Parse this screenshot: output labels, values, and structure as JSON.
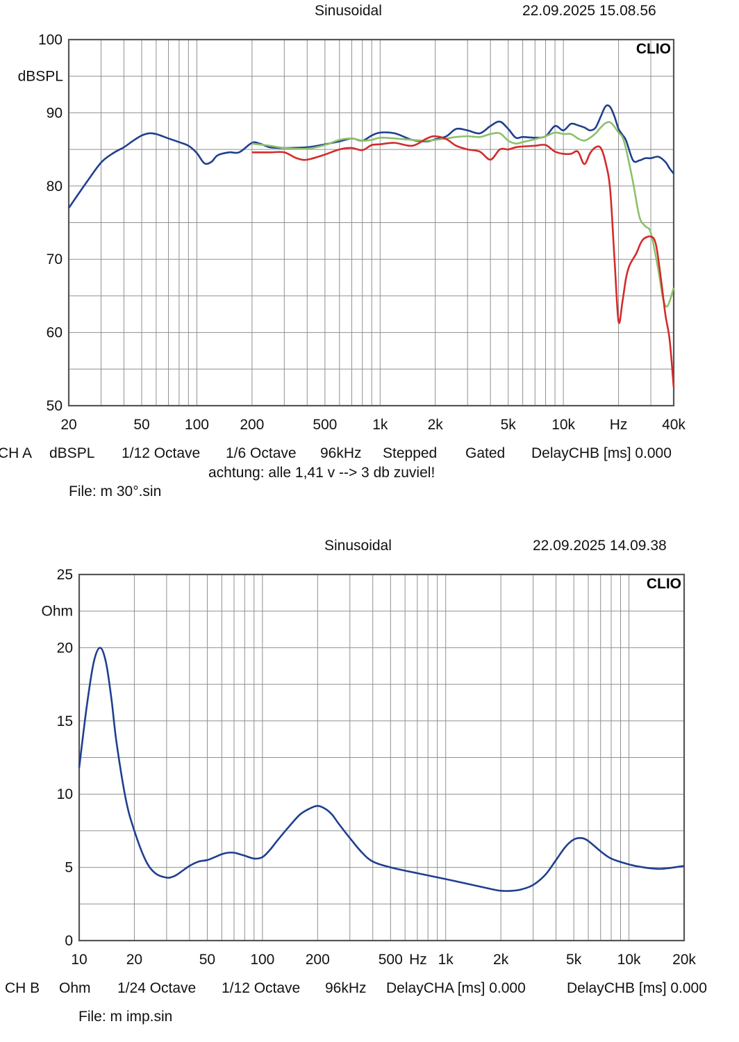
{
  "chart_data": [
    {
      "type": "line",
      "header": {
        "mode": "Sinusoidal",
        "timestamp": "22.09.2025 15.08.56"
      },
      "logo": "CLIO",
      "ylabel": "dBSPL",
      "xscale": "log",
      "xlim": [
        20,
        40000
      ],
      "ylim": [
        50,
        100
      ],
      "grid": true,
      "x_ticks": [
        {
          "v": 20,
          "label": "20"
        },
        {
          "v": 50,
          "label": "50"
        },
        {
          "v": 100,
          "label": "100"
        },
        {
          "v": 200,
          "label": "200"
        },
        {
          "v": 500,
          "label": "500"
        },
        {
          "v": 1000,
          "label": "1k"
        },
        {
          "v": 2000,
          "label": "2k"
        },
        {
          "v": 5000,
          "label": "5k"
        },
        {
          "v": 10000,
          "label": "10k"
        },
        {
          "v": 20000,
          "label": "Hz"
        },
        {
          "v": 40000,
          "label": "40k"
        }
      ],
      "y_ticks": [
        {
          "v": 100,
          "label": "100"
        },
        {
          "v": 90,
          "label": "90"
        },
        {
          "v": 80,
          "label": "80"
        },
        {
          "v": 70,
          "label": "70"
        },
        {
          "v": 60,
          "label": "60"
        },
        {
          "v": 50,
          "label": "50"
        }
      ],
      "series": [
        {
          "color": "#1f3f8f",
          "x": [
            20,
            25,
            30,
            35,
            40,
            45,
            50,
            55,
            60,
            65,
            70,
            80,
            90,
            100,
            110,
            120,
            130,
            150,
            170,
            200,
            220,
            250,
            300,
            400,
            500,
            600,
            700,
            800,
            900,
            1000,
            1200,
            1500,
            1800,
            2000,
            2300,
            2600,
            3000,
            3500,
            4000,
            4500,
            5000,
            5500,
            6000,
            7000,
            8000,
            9000,
            10000,
            11000,
            12000,
            13000,
            14000,
            15000,
            16000,
            17000,
            18000,
            19000,
            20000,
            21000,
            22000,
            24000,
            26000,
            28000,
            30000,
            33000,
            36000,
            38000,
            40000
          ],
          "y": [
            77,
            80.5,
            83.2,
            84.5,
            85.3,
            86.2,
            86.9,
            87.2,
            87.1,
            86.8,
            86.5,
            86,
            85.5,
            84.5,
            83.1,
            83.3,
            84.2,
            84.6,
            84.6,
            85.9,
            85.8,
            85.3,
            85.2,
            85.3,
            85.7,
            86.1,
            86.5,
            86.2,
            86.9,
            87.3,
            87.2,
            86.3,
            86.1,
            86.4,
            86.8,
            87.8,
            87.6,
            87.2,
            88.2,
            88.8,
            87.8,
            86.6,
            86.7,
            86.6,
            86.8,
            88.2,
            87.6,
            88.5,
            88.3,
            88.0,
            87.6,
            88.0,
            89.5,
            90.9,
            90.8,
            89.5,
            87.8,
            87.0,
            86.2,
            83.5,
            83.5,
            83.8,
            83.8,
            84.0,
            83.3,
            82.4,
            81.7
          ]
        },
        {
          "color": "#8cc06a",
          "x": [
            200,
            250,
            300,
            400,
            500,
            600,
            700,
            800,
            900,
            1000,
            1200,
            1500,
            1800,
            2000,
            2300,
            2600,
            3000,
            3500,
            4000,
            4500,
            5000,
            5500,
            6000,
            7000,
            8000,
            9000,
            10000,
            11000,
            12000,
            13000,
            14000,
            15000,
            16000,
            17000,
            18000,
            19000,
            20000,
            21000,
            22000,
            24000,
            26000,
            28000,
            30000,
            33000,
            35000,
            37000,
            40000
          ],
          "y": [
            85.8,
            85.5,
            85.2,
            85.1,
            85.6,
            86.3,
            86.5,
            86.2,
            86.3,
            86.6,
            86.5,
            86.3,
            86.2,
            86.3,
            86.5,
            86.7,
            86.8,
            86.7,
            87.1,
            87.2,
            86.2,
            85.8,
            86.0,
            86.4,
            86.8,
            87.3,
            87.1,
            87.1,
            86.5,
            86.2,
            86.6,
            87.2,
            88.0,
            88.6,
            88.7,
            88.1,
            87.3,
            86.7,
            85.0,
            80.5,
            75.8,
            74.5,
            73.6,
            68.5,
            64.6,
            63.6,
            66.1
          ]
        },
        {
          "color": "#d42a2a",
          "x": [
            200,
            250,
            300,
            350,
            400,
            500,
            600,
            700,
            800,
            900,
            1000,
            1200,
            1500,
            1800,
            2000,
            2300,
            2600,
            3000,
            3500,
            4000,
            4500,
            5000,
            5500,
            6000,
            7000,
            8000,
            9000,
            10000,
            11000,
            12000,
            13000,
            14000,
            15000,
            16000,
            17000,
            18000,
            19000,
            20000,
            21000,
            22000,
            23000,
            25000,
            27000,
            30000,
            32000,
            34000,
            36000,
            38000,
            40000
          ],
          "y": [
            84.6,
            84.6,
            84.6,
            83.8,
            83.6,
            84.3,
            85.0,
            85.2,
            84.9,
            85.6,
            85.7,
            85.9,
            85.5,
            86.5,
            86.8,
            86.4,
            85.5,
            85.0,
            84.7,
            83.6,
            85.0,
            85.0,
            85.3,
            85.4,
            85.5,
            85.6,
            84.7,
            84.4,
            84.4,
            84.7,
            83.0,
            84.5,
            85.3,
            85.2,
            83.2,
            79.5,
            70.1,
            61.5,
            64.2,
            67.5,
            69.2,
            70.8,
            72.6,
            73.1,
            72.0,
            67.5,
            62.5,
            59.0,
            52.5
          ]
        }
      ],
      "footer": {
        "channel": "CH A",
        "unit": "dBSPL",
        "smoothing": "1/12 Octave",
        "resolution": "1/6 Octave",
        "rate": "96kHz",
        "mode": "Stepped",
        "gating": "Gated",
        "delay": "DelayCHB [ms] 0.000",
        "note": "achtung: alle 1,41 v --> 3 db zuviel!",
        "file": "File: m 30°.sin"
      }
    },
    {
      "type": "line",
      "header": {
        "mode": "Sinusoidal",
        "timestamp": "22.09.2025 14.09.38"
      },
      "logo": "CLIO",
      "ylabel": "Ohm",
      "xscale": "log",
      "xlim": [
        10,
        20000
      ],
      "ylim": [
        0,
        25
      ],
      "grid": true,
      "x_ticks": [
        {
          "v": 10,
          "label": "10"
        },
        {
          "v": 20,
          "label": "20"
        },
        {
          "v": 50,
          "label": "50"
        },
        {
          "v": 100,
          "label": "100"
        },
        {
          "v": 200,
          "label": "200"
        },
        {
          "v": 500,
          "label": "500"
        },
        {
          "v": 707,
          "label": "Hz"
        },
        {
          "v": 1000,
          "label": "1k"
        },
        {
          "v": 2000,
          "label": "2k"
        },
        {
          "v": 5000,
          "label": "5k"
        },
        {
          "v": 10000,
          "label": "10k"
        },
        {
          "v": 20000,
          "label": "20k"
        }
      ],
      "y_ticks": [
        {
          "v": 25,
          "label": "25"
        },
        {
          "v": 20,
          "label": "20"
        },
        {
          "v": 15,
          "label": "15"
        },
        {
          "v": 10,
          "label": "10"
        },
        {
          "v": 5,
          "label": "5"
        },
        {
          "v": 0,
          "label": "0"
        }
      ],
      "series": [
        {
          "color": "#1f3f8f",
          "x": [
            10,
            11,
            12,
            13,
            14,
            15,
            16,
            18,
            20,
            23,
            26,
            30,
            33,
            36,
            40,
            45,
            50,
            55,
            60,
            65,
            70,
            75,
            80,
            90,
            100,
            110,
            120,
            140,
            160,
            180,
            200,
            220,
            240,
            260,
            300,
            350,
            400,
            500,
            700,
            1000,
            1400,
            1800,
            2000,
            2300,
            2600,
            3000,
            3500,
            4000,
            4500,
            5000,
            5500,
            6000,
            7000,
            8000,
            10000,
            12000,
            15000,
            20000
          ],
          "y": [
            11.8,
            16.0,
            19.0,
            20.0,
            19.0,
            16.5,
            13.5,
            9.6,
            7.5,
            5.5,
            4.6,
            4.3,
            4.4,
            4.7,
            5.1,
            5.4,
            5.5,
            5.7,
            5.9,
            6.0,
            6.0,
            5.9,
            5.8,
            5.6,
            5.7,
            6.2,
            6.8,
            7.8,
            8.6,
            9.0,
            9.2,
            9.0,
            8.6,
            8.0,
            7.0,
            6.0,
            5.4,
            5.0,
            4.6,
            4.2,
            3.8,
            3.5,
            3.4,
            3.4,
            3.5,
            3.8,
            4.5,
            5.5,
            6.4,
            6.9,
            7.0,
            6.8,
            6.1,
            5.6,
            5.2,
            5.0,
            4.9,
            5.1
          ]
        }
      ],
      "footer": {
        "channel": "CH B",
        "unit": "Ohm",
        "smoothing": "1/24 Octave",
        "resolution": "1/12 Octave",
        "rate": "96kHz",
        "delay_a": "DelayCHA [ms] 0.000",
        "delay_b": "DelayCHB [ms] 0.000",
        "file": "File: m imp.sin"
      }
    }
  ]
}
